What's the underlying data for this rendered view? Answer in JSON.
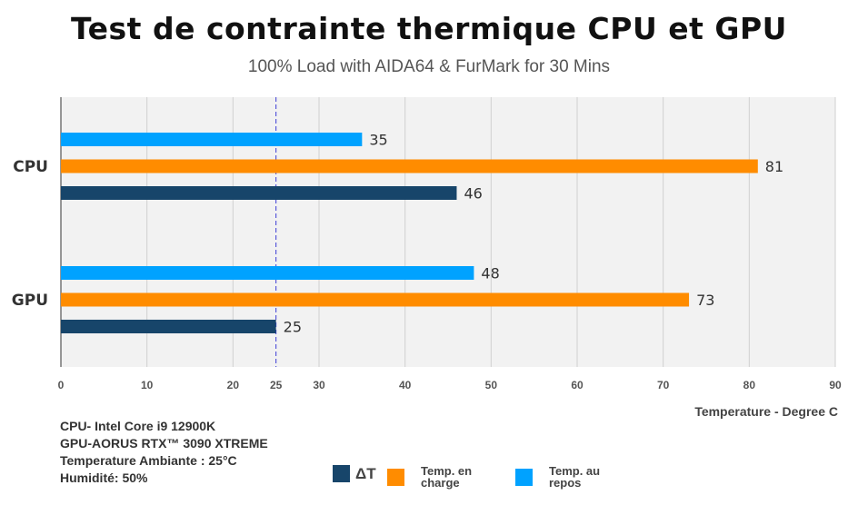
{
  "chart_data": {
    "type": "bar",
    "orientation": "horizontal",
    "title": "Test de contrainte thermique CPU et GPU",
    "subtitle": "100% Load with AIDA64 & FurMark for 30 Mins",
    "categories": [
      "CPU",
      "GPU"
    ],
    "series": [
      {
        "name": "Temp. au repos",
        "color": "#00a2ff",
        "values": [
          35,
          48
        ]
      },
      {
        "name": "Temp. en charge",
        "color": "#ff8c00",
        "values": [
          81,
          73
        ]
      },
      {
        "name": "ΔT",
        "color": "#17456a",
        "values": [
          46,
          25
        ]
      }
    ],
    "xlim": [
      0,
      90
    ],
    "xticks": [
      0,
      10,
      20,
      25,
      30,
      40,
      50,
      60,
      70,
      80,
      90
    ],
    "reference_line": {
      "value": 25,
      "style": "dashed",
      "color": "#3b3bd6"
    },
    "xlabel": "Temperature - Degree C",
    "grid": true,
    "legend": [
      {
        "label": "ΔT",
        "color": "#17456a"
      },
      {
        "label": "Temp. en charge",
        "color": "#ff8c00"
      },
      {
        "label": "Temp. au repos",
        "color": "#00a2ff"
      }
    ],
    "legend_position": "bottom-center"
  },
  "notes": [
    "CPU- Intel Core i9 12900K",
    "GPU-AORUS RTX™ 3090 XTREME",
    "Temperature Ambiante : 25°C",
    "Humidité: 50%"
  ]
}
